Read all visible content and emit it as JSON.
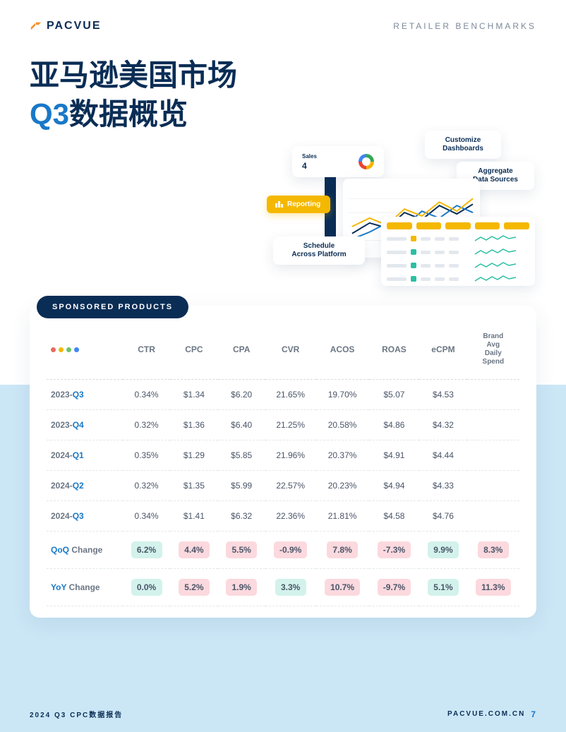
{
  "header": {
    "logo_text": "PACVUE",
    "logo_color": "#0a2d55",
    "logo_accent": "#f5912b",
    "tagline": "RETAILER  BENCHMARKS",
    "tagline_color": "#7c8a9a"
  },
  "title": {
    "line1": "亚马逊美国市场",
    "accent": "Q3",
    "line2_rest": "数据概览",
    "color": "#0a2d55",
    "accent_color": "#1978c8"
  },
  "illustration": {
    "cards": {
      "customize": "Customize\nDashboards",
      "aggregate": "Aggregate\nData Sources",
      "schedule": "Schedule\nAcross Platform",
      "sales_label": "Sales",
      "sales_value": "4"
    },
    "reporting_label": "Reporting",
    "reporting_bg": "#f5b800",
    "side_menu_color": "#0a2d55",
    "line_colors": [
      "#f5b800",
      "#1978c8",
      "#0a2d55"
    ],
    "spark_colors": [
      "#2bbfa3",
      "#2bbfa3",
      "#2bbfa3",
      "#2bbfa3"
    ],
    "dot_colors": [
      "#f5b800",
      "#2bbfa3",
      "#2bbfa3",
      "#2bbfa3"
    ],
    "yellow_pill_color": "#f5b800"
  },
  "section_label": "SPONSORED PRODUCTS",
  "table": {
    "window_dots": [
      "#ea6a5e",
      "#f5b800",
      "#6ac46a",
      "#4285f4"
    ],
    "columns": [
      "CTR",
      "CPC",
      "CPA",
      "CVR",
      "ACOS",
      "ROAS",
      "eCPM",
      "Brand Avg Daily Spend"
    ],
    "rows": [
      {
        "year": "2023",
        "q": "Q3",
        "cells": [
          "0.34%",
          "$1.34",
          "$6.20",
          "21.65%",
          "19.70%",
          "$5.07",
          "$4.53",
          ""
        ]
      },
      {
        "year": "2023",
        "q": "Q4",
        "cells": [
          "0.32%",
          "$1.36",
          "$6.40",
          "21.25%",
          "20.58%",
          "$4.86",
          "$4.32",
          ""
        ]
      },
      {
        "year": "2024",
        "q": "Q1",
        "cells": [
          "0.35%",
          "$1.29",
          "$5.85",
          "21.96%",
          "20.37%",
          "$4.91",
          "$4.44",
          ""
        ]
      },
      {
        "year": "2024",
        "q": "Q2",
        "cells": [
          "0.32%",
          "$1.35",
          "$5.99",
          "22.57%",
          "20.23%",
          "$4.94",
          "$4.33",
          ""
        ]
      },
      {
        "year": "2024",
        "q": "Q3",
        "cells": [
          "0.34%",
          "$1.41",
          "$6.32",
          "22.36%",
          "21.81%",
          "$4.58",
          "$4.76",
          ""
        ]
      }
    ],
    "changes": [
      {
        "label_pre": "QoQ",
        "label_suf": " Change",
        "cells": [
          {
            "v": "6.2%",
            "bg": "#d3f2ec"
          },
          {
            "v": "4.4%",
            "bg": "#fbd9de"
          },
          {
            "v": "5.5%",
            "bg": "#fbd9de"
          },
          {
            "v": "-0.9%",
            "bg": "#fbd9de"
          },
          {
            "v": "7.8%",
            "bg": "#fbd9de"
          },
          {
            "v": "-7.3%",
            "bg": "#fbd9de"
          },
          {
            "v": "9.9%",
            "bg": "#d3f2ec"
          },
          {
            "v": "8.3%",
            "bg": "#fbd9de"
          }
        ]
      },
      {
        "label_pre": "YoY",
        "label_suf": " Change",
        "cells": [
          {
            "v": "0.0%",
            "bg": "#d3f2ec"
          },
          {
            "v": "5.2%",
            "bg": "#fbd9de"
          },
          {
            "v": "1.9%",
            "bg": "#fbd9de"
          },
          {
            "v": "3.3%",
            "bg": "#d3f2ec"
          },
          {
            "v": "10.7%",
            "bg": "#fbd9de"
          },
          {
            "v": "-9.7%",
            "bg": "#fbd9de"
          },
          {
            "v": "5.1%",
            "bg": "#d3f2ec"
          },
          {
            "v": "11.3%",
            "bg": "#fbd9de"
          }
        ]
      }
    ],
    "chip_text_color": "#4a5568"
  },
  "footer": {
    "left": "2024 Q3 CPC数据报告",
    "right": "PACVUE.COM.CN",
    "page": "7"
  }
}
